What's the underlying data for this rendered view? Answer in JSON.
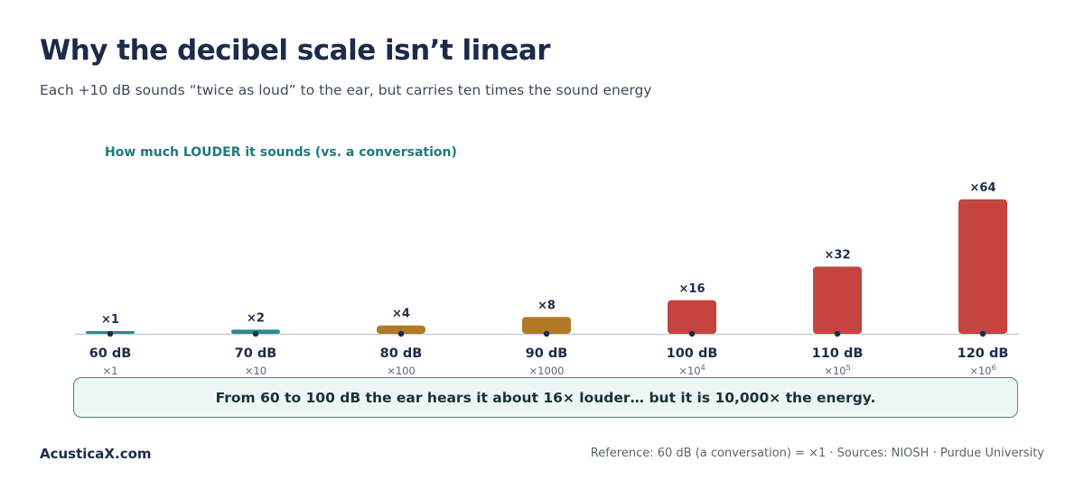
{
  "title": "Why the decibel scale isn’t linear",
  "subtitle": "Each +10 dB sounds “twice as loud” to the ear, but carries ten times the sound energy",
  "chart_data": {
    "type": "bar",
    "title": "How much LOUDER it sounds (vs. a conversation)",
    "categories": [
      "60 dB",
      "70 dB",
      "80 dB",
      "90 dB",
      "100 dB",
      "110 dB",
      "120 dB"
    ],
    "values": [
      1,
      2,
      4,
      8,
      16,
      32,
      64
    ],
    "value_labels": [
      "×1",
      "×2",
      "×4",
      "×8",
      "×16",
      "×32",
      "×64"
    ],
    "energy_labels": [
      "×1",
      "×10",
      "×100",
      "×1000",
      "×10",
      "×10",
      "×10"
    ],
    "energy_exponents": [
      "",
      "",
      "",
      "",
      "4",
      "5",
      "6"
    ],
    "bar_colors": [
      "#2a8c8a",
      "#2a8c8a",
      "#b07a26",
      "#b07a26",
      "#c5443f",
      "#c5443f",
      "#c5443f"
    ],
    "ylim": [
      0,
      64
    ],
    "grid": false,
    "legend": "none"
  },
  "callout": "From 60 to 100 dB the ear hears it about 16× louder… but it is 10,000× the energy.",
  "footer": {
    "brand": "AcusticaX.com",
    "source": "Reference: 60 dB (a conversation) = ×1 · Sources: NIOSH · Purdue University"
  },
  "colors": {
    "title": "#1c2b4a",
    "chart_label": "#1f7a7a",
    "baseline": "#c9cfd6",
    "callout_border": "#3e8c86",
    "callout_fill": "#eef6f4"
  }
}
